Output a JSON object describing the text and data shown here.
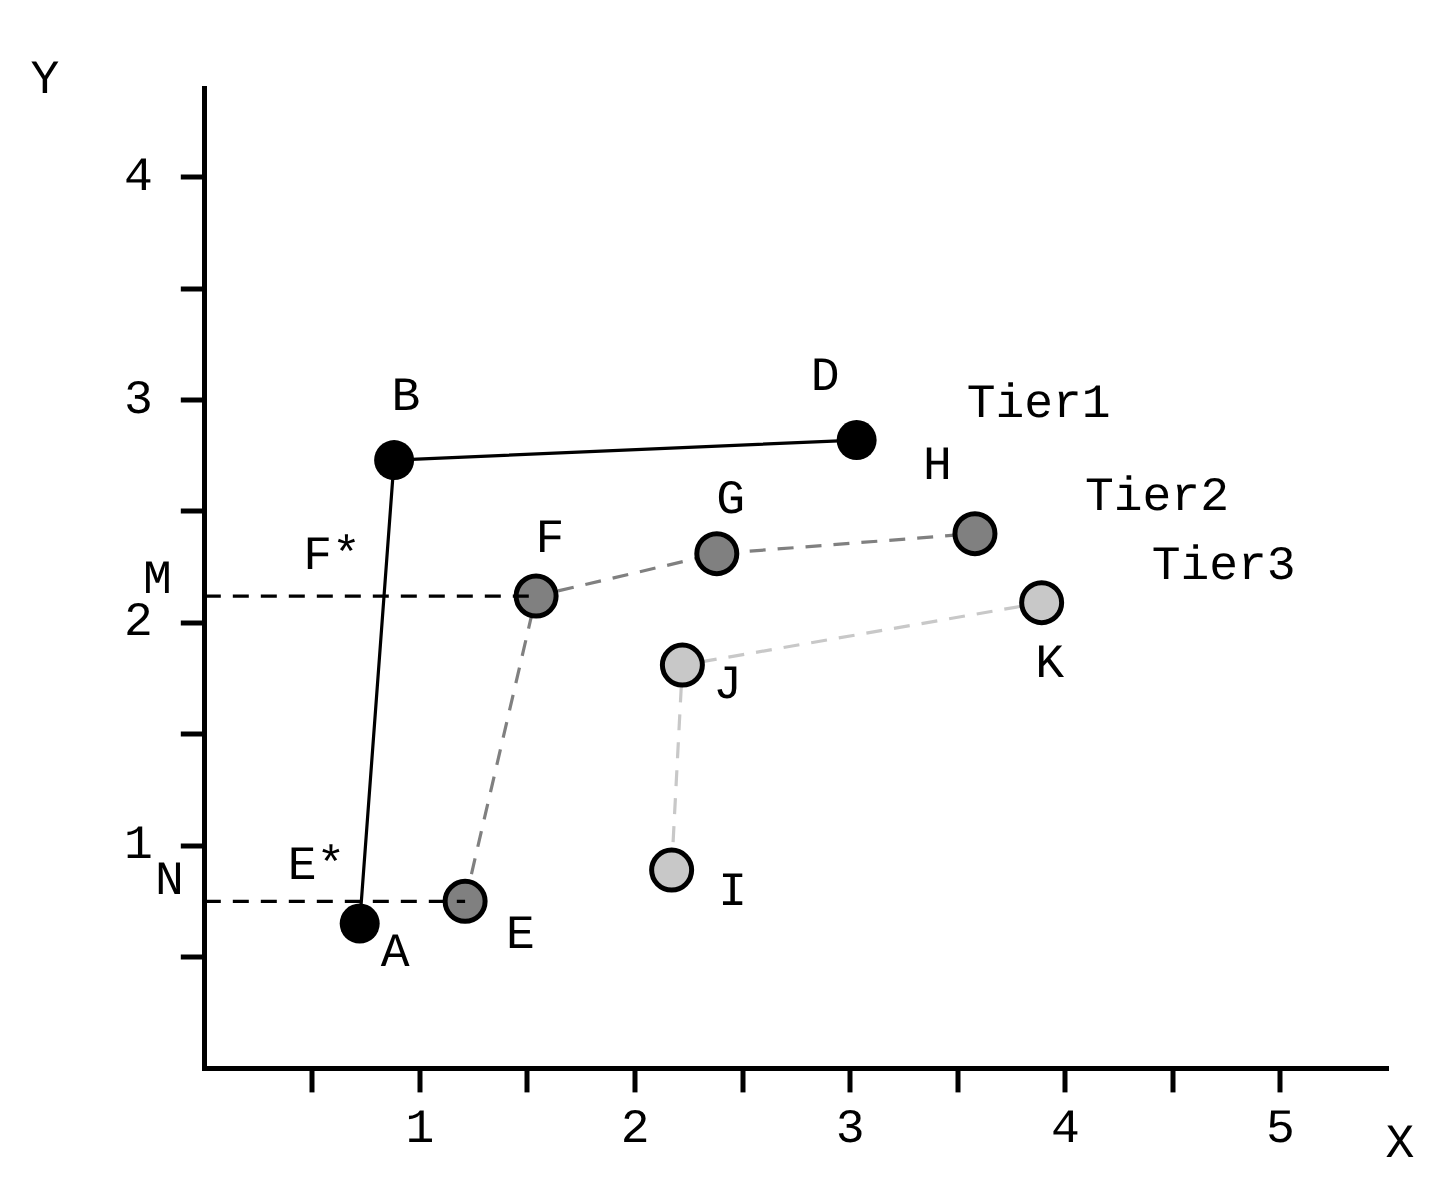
{
  "chart_data": {
    "type": "line",
    "xlabel": "X",
    "ylabel": "Y",
    "xlim": [
      0,
      5.5
    ],
    "ylim": [
      0,
      4.4
    ],
    "xticks": [
      {
        "value": 0.5,
        "label": null
      },
      1,
      {
        "value": 1.5,
        "label": null
      },
      2,
      {
        "value": 2.5,
        "label": null
      },
      3,
      {
        "value": 3.5,
        "label": null
      },
      4,
      {
        "value": 4.5,
        "label": null
      },
      5
    ],
    "yticks": [
      {
        "value": 0.5,
        "label": null
      },
      1,
      {
        "value": 1.5,
        "label": null
      },
      2,
      {
        "value": 2.5,
        "label": null
      },
      3,
      {
        "value": 3.5,
        "label": null
      },
      4
    ],
    "grid": false,
    "legend": false,
    "series": [
      {
        "type": "line",
        "line_style": "dashed",
        "color": "#000000",
        "x": [
          0,
          1.54
        ],
        "values": [
          2.12,
          2.12
        ]
      },
      {
        "type": "line",
        "line_style": "dashed",
        "color": "#000000",
        "x": [
          0,
          1.21
        ],
        "values": [
          0.75,
          0.75
        ]
      },
      {
        "name": "Tier1",
        "type": "line",
        "line_style": "solid",
        "marker": "circle",
        "color": "#000000",
        "x": [
          0.72,
          0.88,
          3.03
        ],
        "values": [
          0.65,
          2.73,
          2.82
        ]
      },
      {
        "name": "Tier2",
        "type": "line",
        "line_style": "dashed",
        "marker": "circle",
        "color": "#808080",
        "x": [
          1.21,
          1.54,
          2.38,
          3.58
        ],
        "values": [
          0.75,
          2.12,
          2.31,
          2.4
        ]
      },
      {
        "name": "Tier3",
        "type": "line",
        "line_style": "dashed",
        "marker": "circle",
        "color": "#c8c8c8",
        "x": [
          2.17,
          2.22,
          3.89
        ],
        "values": [
          0.89,
          1.81,
          2.09
        ]
      }
    ],
    "annotations": [
      {
        "text": "A",
        "x": 0.72,
        "y": 0.65
      },
      {
        "text": "B",
        "x": 0.88,
        "y": 2.73
      },
      {
        "text": "D",
        "x": 3.03,
        "y": 2.82
      },
      {
        "text": "E",
        "x": 1.21,
        "y": 0.75
      },
      {
        "text": "F",
        "x": 1.54,
        "y": 2.12
      },
      {
        "text": "G",
        "x": 2.38,
        "y": 2.31
      },
      {
        "text": "H",
        "x": 3.58,
        "y": 2.4
      },
      {
        "text": "I",
        "x": 2.17,
        "y": 0.89
      },
      {
        "text": "J",
        "x": 2.22,
        "y": 1.81
      },
      {
        "text": "K",
        "x": 3.89,
        "y": 2.09
      },
      {
        "text": "M",
        "x": 0,
        "y": 2.12
      },
      {
        "text": "N",
        "x": 0,
        "y": 0.75
      },
      {
        "text": "F*",
        "x": 0.83,
        "y": 2.12
      },
      {
        "text": "E*",
        "x": 0.73,
        "y": 0.75
      }
    ]
  }
}
